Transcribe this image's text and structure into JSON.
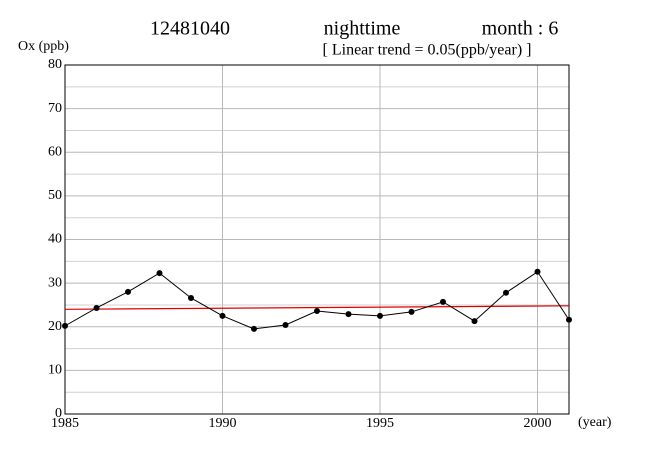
{
  "chart_data": {
    "type": "line",
    "title": [
      "12481040",
      "nighttime",
      "month : 6"
    ],
    "subtitle": "[ Linear trend = 0.05(ppb/year) ]",
    "y_label": "Ox (ppb)",
    "x_label": "(year)",
    "x": [
      1985,
      1986,
      1987,
      1988,
      1989,
      1990,
      1991,
      1992,
      1993,
      1994,
      1995,
      1996,
      1997,
      1998,
      1999,
      2000,
      2001
    ],
    "series": [
      {
        "color": "#000000",
        "values": [
          20.2,
          24.3,
          28.0,
          32.3,
          26.6,
          22.5,
          19.5,
          20.4,
          23.6,
          22.9,
          22.5,
          23.4,
          25.7,
          21.3,
          27.8,
          32.6,
          21.6
        ]
      }
    ],
    "trend": {
      "color": "#e00000",
      "x": [
        1985,
        2001
      ],
      "values": [
        24.0,
        24.8
      ]
    },
    "xlim": [
      1985,
      2001
    ],
    "xticks": [
      1985,
      1990,
      1995,
      2000
    ],
    "ylim": [
      0,
      80
    ],
    "yticks": [
      0,
      10,
      20,
      30,
      40,
      50,
      60,
      70,
      80
    ],
    "minor_yticks": [
      5,
      15,
      25,
      35,
      45,
      55,
      65,
      75
    ],
    "grid": true
  }
}
